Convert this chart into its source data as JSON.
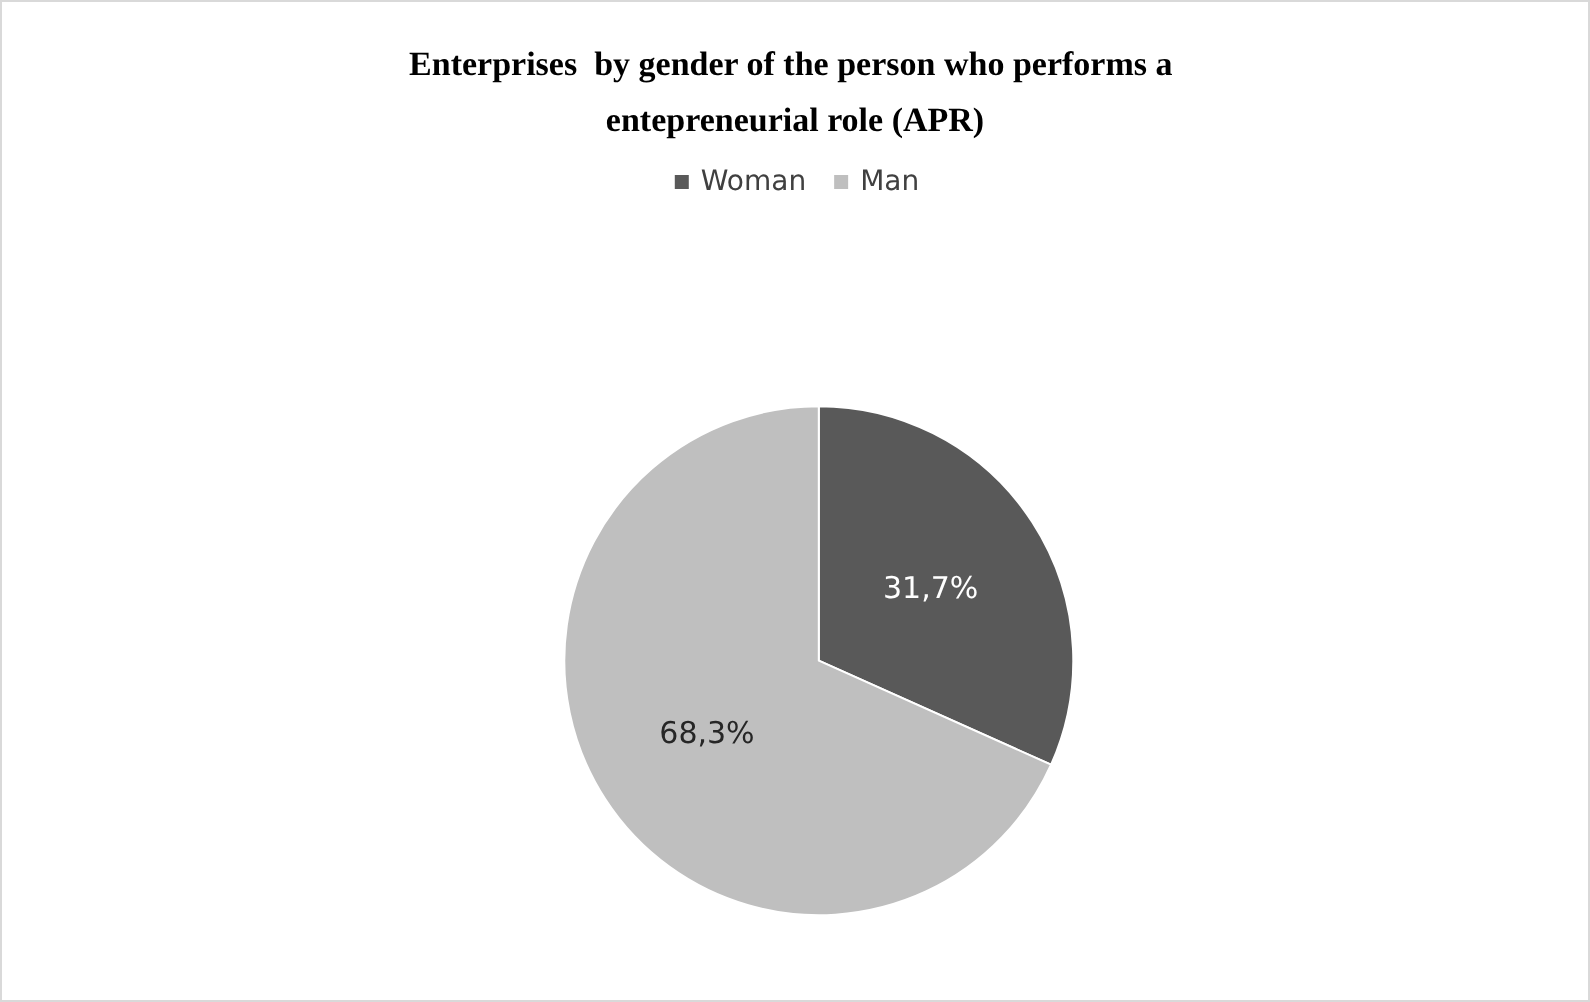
{
  "chart_data": {
    "type": "pie",
    "title": "Enterprises  by gender of the person who performs a entepreneurial role (APR)",
    "categories": [
      "Woman",
      "Man"
    ],
    "values": [
      31.7,
      68.3
    ],
    "colors": [
      "#595959",
      "#bfbfbf"
    ],
    "value_labels": [
      "31,7%",
      "68,3%"
    ],
    "legend": "top"
  }
}
